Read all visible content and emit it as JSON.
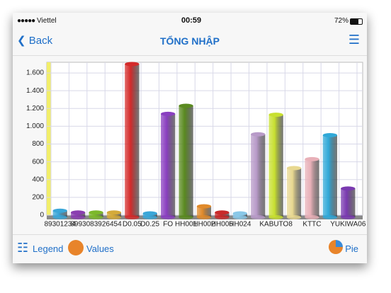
{
  "status_bar": {
    "carrier": "Viettel",
    "time": "00:59",
    "battery": "72%"
  },
  "nav": {
    "back": "Back",
    "title": "TỔNG NHẬP"
  },
  "toolbar": {
    "legend": "Legend",
    "values": "Values",
    "pie": "Pie"
  },
  "chart_data": {
    "type": "bar",
    "categories": [
      "89301234",
      null,
      "8993083926454",
      null,
      "D0.05",
      "D0.25",
      "FO",
      "HH001",
      "HH002",
      "HH006",
      "HH024",
      null,
      "KABUTO8",
      null,
      "KTTC",
      null,
      "YUKIWA06"
    ],
    "values": [
      50,
      30,
      30,
      30,
      1700,
      20,
      1140,
      1230,
      100,
      30,
      20,
      910,
      1130,
      530,
      630,
      900,
      300
    ],
    "colors": [
      "#3aa6d8",
      "#8a3fb0",
      "#7cb82a",
      "#d4aa3a",
      "#d42a2a",
      "#3aa6d8",
      "#8a3fc0",
      "#5a8a20",
      "#e08a2a",
      "#c82a2a",
      "#8ac8e8",
      "#b89ac8",
      "#c8e030",
      "#e8d890",
      "#e8b0b8",
      "#30a8d8",
      "#7a3ab0"
    ],
    "ylim": [
      0,
      1720
    ],
    "yticks": [
      0,
      200,
      400,
      600,
      800,
      {
        "value": 1000,
        "label": "1.000"
      },
      {
        "value": 1200,
        "label": "1.200"
      },
      {
        "value": 1400,
        "label": "1.400"
      },
      {
        "value": 1600,
        "label": "1.600"
      }
    ],
    "grid": true
  }
}
